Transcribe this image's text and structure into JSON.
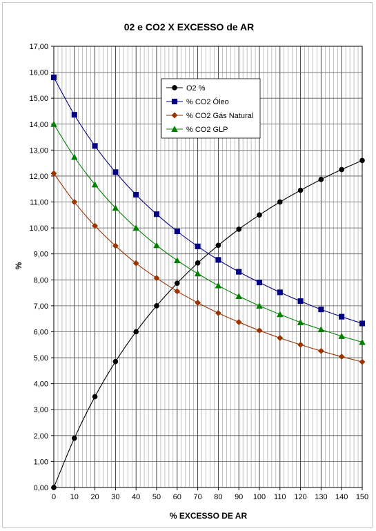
{
  "chart_data": {
    "type": "line",
    "title": "02 e CO2 X EXCESSO de AR",
    "xlabel": "% EXCESSO DE AR",
    "ylabel": "%",
    "xlim": [
      0,
      150
    ],
    "ylim": [
      0,
      17
    ],
    "x_ticks": [
      0,
      10,
      20,
      30,
      40,
      50,
      60,
      70,
      80,
      90,
      100,
      110,
      120,
      130,
      140,
      150
    ],
    "x_tick_labels": [
      "0",
      "10",
      "20",
      "30",
      "40",
      "50",
      "60",
      "70",
      "80",
      "90",
      "100",
      "110",
      "120",
      "130",
      "140",
      "150"
    ],
    "y_tick_labels": [
      "0,00",
      "1,00",
      "2,00",
      "3,00",
      "4,00",
      "5,00",
      "6,00",
      "7,00",
      "8,00",
      "9,00",
      "10,00",
      "11,00",
      "12,00",
      "13,00",
      "14,00",
      "15,00",
      "16,00",
      "17,00"
    ],
    "grid": true,
    "legend_position": "top-center",
    "x": [
      0,
      10,
      20,
      30,
      40,
      50,
      60,
      70,
      80,
      90,
      100,
      110,
      120,
      130,
      140,
      150
    ],
    "series": [
      {
        "name": "O2 %",
        "color": "#000000",
        "marker": "circle",
        "values": [
          0.0,
          1.9,
          3.5,
          4.85,
          6.0,
          7.0,
          7.87,
          8.65,
          9.33,
          9.95,
          10.5,
          11.0,
          11.45,
          11.87,
          12.25,
          12.6
        ]
      },
      {
        "name": "% CO2  Óleo",
        "color": "#000080",
        "marker": "square",
        "values": [
          15.8,
          14.36,
          13.16,
          12.15,
          11.28,
          10.53,
          9.87,
          9.29,
          8.77,
          8.31,
          7.9,
          7.52,
          7.18,
          6.86,
          6.58,
          6.32
        ]
      },
      {
        "name": "% CO2 Gás Natural",
        "color": "#993300",
        "marker": "diamond",
        "values": [
          12.1,
          11.0,
          10.08,
          9.31,
          8.64,
          8.07,
          7.56,
          7.12,
          6.72,
          6.37,
          6.05,
          5.76,
          5.5,
          5.26,
          5.04,
          4.84
        ]
      },
      {
        "name": "% CO2 GLP",
        "color": "#008000",
        "marker": "triangle",
        "values": [
          14.0,
          12.73,
          11.67,
          10.77,
          10.0,
          9.33,
          8.75,
          8.24,
          7.78,
          7.37,
          7.0,
          6.67,
          6.36,
          6.09,
          5.83,
          5.6
        ]
      }
    ]
  }
}
